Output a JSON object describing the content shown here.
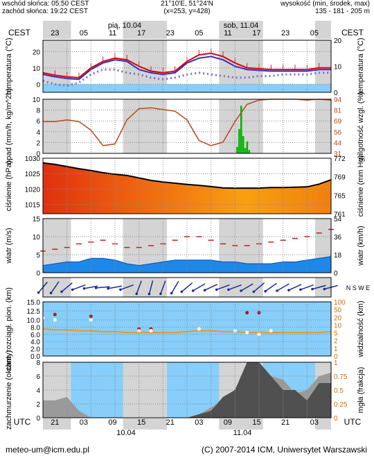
{
  "header": {
    "sunrise": "wschód słońca: 05:50 CEST",
    "sunset": "zachód słońca: 19:22 CEST",
    "coords": "21°10'E, 51°24'N",
    "grid": "(x=253, y=428)",
    "elevation_label": "wysokość (min, środek, max)",
    "elevation_values": "135 - 181 - 205 m"
  },
  "top_axis": {
    "timezone": "CEST",
    "day1": "pią, 10.04",
    "day2": "sob, 11.04",
    "hours": [
      "23",
      "05",
      "11",
      "17",
      "23",
      "05",
      "11",
      "17",
      "23",
      "05"
    ]
  },
  "bottom_axis": {
    "timezone": "UTC",
    "hours": [
      "21",
      "03",
      "09",
      "15",
      "21",
      "03",
      "09",
      "15",
      "21",
      "03"
    ],
    "dates": [
      "10.04",
      "11.04"
    ]
  },
  "footer": {
    "email": "meteo-um@icm.edu.pl",
    "copyright": "(C) 2007-2014 ICM, Uniwersytet Warszawski"
  },
  "colors": {
    "night_shade": "#d4d4d4",
    "sky": "#87cefa",
    "temp": "#e00000",
    "dewpoint": "#3030c0",
    "precip": "#00b000",
    "humidity": "#b84818",
    "ground_band": "#87cefa"
  },
  "chart_data": [
    {
      "id": "temperature",
      "type": "line",
      "ylabel": "temperatura (°C)",
      "ylabel_right": "temperatura (°C)",
      "y_ticks": [
        0,
        10,
        20
      ],
      "ylim": [
        -5,
        27
      ],
      "x_hours": [
        0,
        3,
        6,
        9,
        12,
        15,
        18,
        21,
        24,
        27,
        30,
        33,
        36,
        39,
        42,
        45,
        48,
        51,
        54,
        57,
        60,
        63,
        66,
        69,
        72
      ],
      "series": [
        {
          "values": [
            7,
            5.5,
            4.5,
            4,
            10,
            14,
            16,
            15,
            11,
            8,
            7,
            8,
            14,
            18,
            19,
            17,
            13,
            10,
            9.5,
            9,
            9,
            9,
            9,
            10,
            10
          ]
        },
        {
          "values": [
            6,
            4.5,
            3.5,
            3,
            9,
            13,
            15,
            14,
            9,
            7,
            6,
            7,
            13,
            16,
            17,
            15,
            11,
            9,
            8.5,
            8,
            8,
            8,
            8,
            9,
            9
          ]
        },
        {
          "values": [
            2,
            0,
            -1,
            1,
            6,
            9,
            9,
            7,
            6,
            4,
            3,
            4,
            6,
            7,
            6,
            5,
            4,
            4,
            5,
            5,
            6,
            6,
            6,
            7,
            7
          ]
        }
      ]
    },
    {
      "id": "precipitation",
      "type": "bar",
      "ylabel": "opad (mm/h, kg/m^2h)",
      "ylabel_right": "wilgotność wzgl. (%)",
      "y_ticks": [
        0,
        2,
        4,
        6,
        8,
        10
      ],
      "ylim": [
        0,
        10
      ],
      "y_right_ticks": [
        31,
        44,
        56,
        69,
        81,
        94
      ],
      "x_hours": [
        0,
        3,
        6,
        9,
        12,
        15,
        18,
        21,
        24,
        27,
        30,
        33,
        36,
        39,
        42,
        45,
        48,
        51,
        54,
        57,
        60,
        63,
        66,
        69,
        72
      ],
      "series": [
        {
          "values": [
            0,
            0,
            0,
            0,
            0,
            0,
            0,
            0,
            0,
            0,
            0,
            0,
            0,
            0,
            0,
            0,
            0,
            0,
            0,
            0,
            0,
            0,
            0,
            0,
            0
          ]
        },
        {
          "values": [
            68,
            68,
            70,
            68,
            58,
            40,
            42,
            70,
            83,
            84,
            82,
            80,
            70,
            46,
            40,
            44,
            68,
            88,
            93,
            94,
            94,
            94,
            93,
            94,
            93
          ]
        }
      ],
      "precip_bars": [
        [
          48.5,
          1.2
        ],
        [
          49,
          4.5
        ],
        [
          49.5,
          8.8
        ],
        [
          50,
          3.2
        ],
        [
          50.5,
          1
        ],
        [
          51,
          2.2
        ],
        [
          51.5,
          0.6
        ]
      ]
    },
    {
      "id": "pressure",
      "type": "area",
      "ylabel": "ciśnienie (hPa)",
      "ylabel_right": "ciśnienie (mm Hg)",
      "y_ticks": [
        1015,
        1020,
        1025,
        1030
      ],
      "ylim": [
        1012,
        1030
      ],
      "y_right_ticks": [
        761,
        765,
        769,
        772
      ],
      "x_hours": [
        0,
        3,
        6,
        9,
        12,
        15,
        18,
        21,
        24,
        27,
        30,
        33,
        36,
        39,
        42,
        45,
        48,
        51,
        54,
        57,
        60,
        63,
        66,
        69,
        72
      ],
      "series": [
        {
          "values": [
            1028.5,
            1028,
            1027.3,
            1026.6,
            1026,
            1025.3,
            1024.8,
            1024.4,
            1023.6,
            1022.8,
            1022.3,
            1021.9,
            1021.5,
            1021.2,
            1020.8,
            1020.4,
            1020.3,
            1020.3,
            1020.3,
            1020.5,
            1020.5,
            1020.6,
            1020.7,
            1021.6,
            1023
          ]
        }
      ]
    },
    {
      "id": "wind",
      "type": "area",
      "ylabel": "wiatr (m/s)",
      "ylabel_right": "wiatr (km/h)",
      "y_ticks": [
        0,
        5,
        10,
        15
      ],
      "ylim": [
        0,
        15
      ],
      "y_right_ticks": [
        0,
        18,
        36,
        54
      ],
      "x_hours": [
        0,
        3,
        6,
        9,
        12,
        15,
        18,
        21,
        24,
        27,
        30,
        33,
        36,
        39,
        42,
        45,
        48,
        51,
        54,
        57,
        60,
        63,
        66,
        69,
        72
      ],
      "series": [
        {
          "values": [
            2,
            2.5,
            3,
            3,
            4,
            4,
            3.5,
            2.5,
            2,
            2.5,
            3,
            3.5,
            3.5,
            3.5,
            3.5,
            3,
            3,
            2.5,
            2.5,
            2.5,
            3,
            3,
            3.5,
            4,
            4.5
          ]
        },
        {
          "values": [
            6,
            6.5,
            7,
            8,
            8.5,
            9,
            8,
            7,
            7,
            7.5,
            8,
            9,
            10,
            10,
            9,
            8,
            7.5,
            7.5,
            8,
            8.5,
            9,
            9.5,
            10,
            11,
            12
          ]
        }
      ]
    },
    {
      "id": "wind_direction",
      "type": "scatter",
      "ylabel_right": "N S W E",
      "x_hours": [
        0,
        3,
        6,
        9,
        12,
        15,
        18,
        21,
        24,
        27,
        30,
        33,
        36,
        39,
        42,
        45,
        48,
        51,
        54,
        57,
        60,
        63,
        66,
        69,
        72
      ],
      "series": [
        {
          "values": [
            220,
            215,
            230,
            250,
            260,
            265,
            260,
            250,
            200,
            195,
            200,
            210,
            230,
            240,
            245,
            250,
            250,
            240,
            230,
            235,
            240,
            245,
            250,
            255,
            255
          ]
        }
      ]
    },
    {
      "id": "visibility",
      "type": "scatter",
      "ylabel": "chm. rozciągł. pion. (km)",
      "ylabel_right": "widzialność (km)",
      "y_ticks": [
        0,
        2,
        4,
        6,
        8,
        10,
        12.5,
        15
      ],
      "y_tick_labels": [
        "0.0",
        "2.0",
        "4.0",
        "6.0",
        "8.0",
        "10.0",
        "12.5",
        "15.0"
      ],
      "ylim": [
        0,
        15
      ],
      "y_right_ticks": [
        0,
        1,
        2,
        5,
        10,
        20,
        50,
        100
      ],
      "x_hours": [
        0,
        3,
        6,
        9,
        12,
        15,
        18,
        21,
        24,
        27,
        30,
        33,
        36,
        39,
        42,
        45,
        48,
        51,
        54,
        57,
        60,
        63,
        66,
        69,
        72
      ],
      "series": [
        {
          "values": [
            12,
            11.5,
            11.5,
            11,
            11,
            10.5,
            10.5,
            10,
            10,
            10,
            10,
            10,
            10.5,
            11,
            11,
            10.5,
            10.5,
            10,
            10,
            10,
            10,
            10,
            10,
            10,
            10.5
          ]
        },
        {
          "values": [
            null,
            11.5,
            null,
            null,
            11,
            null,
            null,
            null,
            7.5,
            7.5,
            null,
            null,
            null,
            null,
            null,
            null,
            null,
            12,
            12,
            null,
            null,
            null,
            null,
            null,
            null
          ]
        },
        {
          "values": [
            10.5,
            10,
            null,
            null,
            10,
            null,
            null,
            null,
            7,
            7,
            null,
            null,
            null,
            7.5,
            null,
            null,
            7,
            6.5,
            6,
            7,
            null,
            null,
            null,
            null,
            null
          ]
        }
      ]
    },
    {
      "id": "clouds",
      "type": "area",
      "ylabel": "zachmurzenie (oktanty)",
      "ylabel_right": "mgła (frakcja)",
      "y_ticks": [
        0,
        2,
        4,
        6,
        8
      ],
      "ylim": [
        0,
        8
      ],
      "y_right_ticks": [
        0,
        0.25,
        0.5,
        0.75,
        1
      ],
      "x_hours": [
        0,
        3,
        6,
        9,
        12,
        15,
        18,
        21,
        24,
        27,
        30,
        33,
        36,
        39,
        42,
        45,
        48,
        51,
        54,
        57,
        60,
        63,
        66,
        69,
        72
      ],
      "series": [
        {
          "values": [
            2.5,
            2.5,
            3,
            1,
            0,
            0,
            0,
            0,
            0,
            0,
            0,
            0,
            0,
            0.5,
            1.5,
            2.5,
            3.5,
            7.5,
            8,
            6,
            5.5,
            3.5,
            4,
            6,
            6.5
          ]
        },
        {
          "values": [
            0,
            0,
            0,
            0,
            0,
            0,
            0,
            0,
            0,
            0,
            0,
            0,
            0,
            0.5,
            1,
            3,
            4,
            8,
            8,
            6,
            4,
            4,
            2.5,
            5,
            5
          ]
        }
      ]
    }
  ]
}
